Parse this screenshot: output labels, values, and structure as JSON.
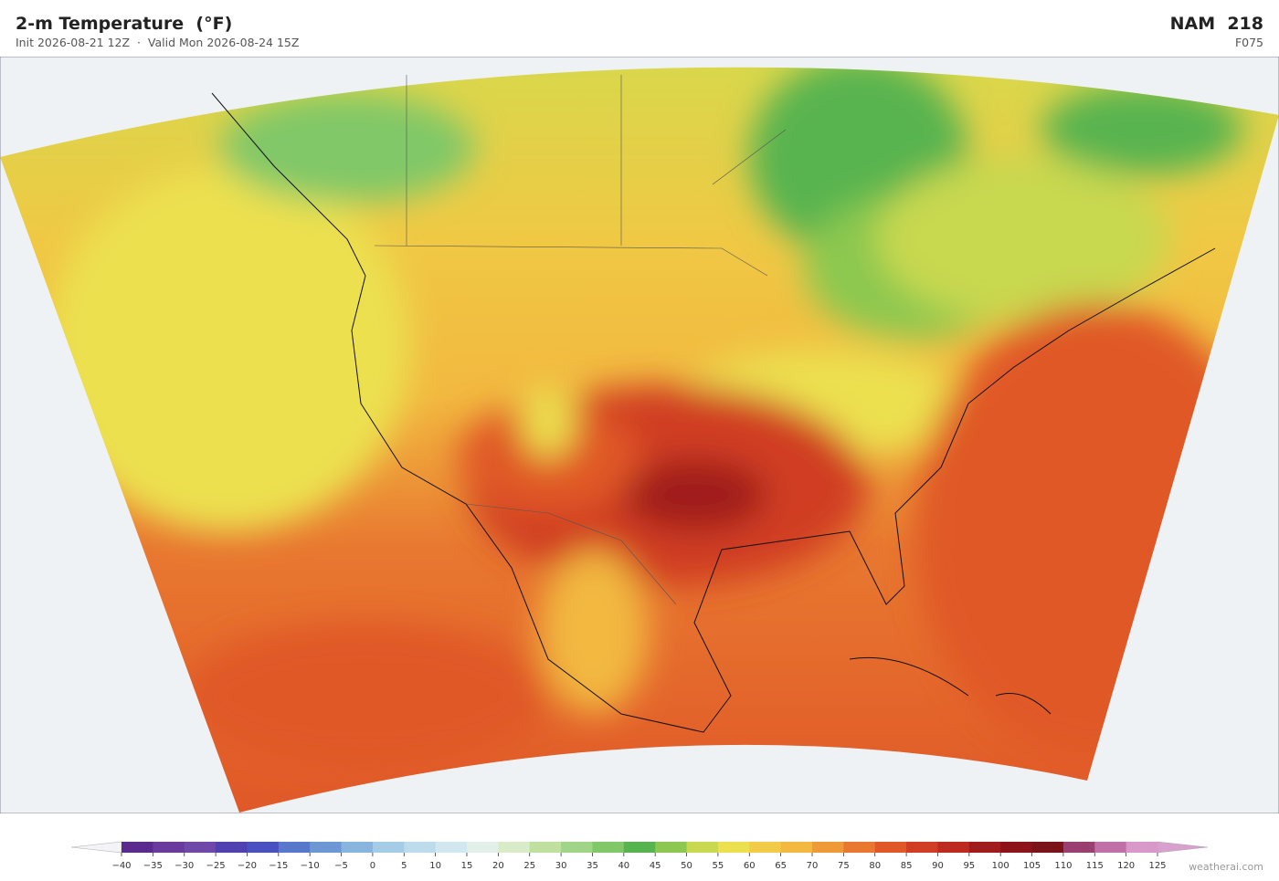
{
  "header": {
    "title": "2-m Temperature  (°F)",
    "subtitle": "Init 2026-08-21 12Z  ·  Valid Mon 2026-08-24 15Z",
    "model": "NAM  218",
    "forecast_hour": "F075"
  },
  "colorbar": {
    "ticks": [
      {
        "value": -40,
        "label": "−40"
      },
      {
        "value": -35,
        "label": "−35"
      },
      {
        "value": -30,
        "label": "−30"
      },
      {
        "value": -25,
        "label": "−25"
      },
      {
        "value": -20,
        "label": "−20"
      },
      {
        "value": -15,
        "label": "−15"
      },
      {
        "value": -10,
        "label": "−10"
      },
      {
        "value": -5,
        "label": "−5"
      },
      0,
      5,
      10,
      15,
      20,
      25,
      30,
      35,
      40,
      45,
      50,
      55,
      60,
      65,
      70,
      75,
      80,
      85,
      90,
      95,
      100,
      105,
      110,
      115,
      120,
      125
    ],
    "colors": [
      "#5b2a8c",
      "#6a3a9c",
      "#7048a8",
      "#5040b0",
      "#4a50c0",
      "#5878cc",
      "#6e98d4",
      "#88b4de",
      "#a4cce6",
      "#bcdcec",
      "#d2e8f0",
      "#e2f0ea",
      "#d8ecc8",
      "#c0e0a0",
      "#a0d488",
      "#80c868",
      "#58b450",
      "#8cc850",
      "#c8d850",
      "#ece050",
      "#f2cc48",
      "#f2b840",
      "#ee9a38",
      "#e87830",
      "#e05828",
      "#d03c24",
      "#bc2a20",
      "#a01c1c",
      "#8c1418",
      "#7a1418",
      "#9a4070",
      "#c070a8",
      "#d898c8"
    ]
  },
  "footer": {
    "credit": "weatherai.com"
  }
}
